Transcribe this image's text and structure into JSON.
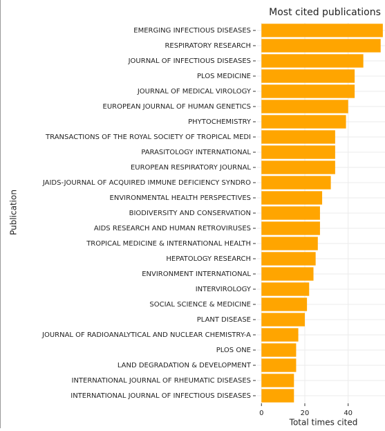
{
  "chart_data": {
    "type": "bar",
    "orientation": "horizontal",
    "title": "Most cited publications",
    "x_label": "Total times cited",
    "y_label": "Publication",
    "categories": [
      "EMERGING INFECTIOUS DISEASES",
      "RESPIRATORY RESEARCH",
      "JOURNAL OF INFECTIOUS DISEASES",
      "PLOS MEDICINE",
      "JOURNAL OF MEDICAL VIROLOGY",
      "EUROPEAN JOURNAL OF HUMAN GENETICS",
      "PHYTOCHEMISTRY",
      "TRANSACTIONS OF THE ROYAL SOCIETY OF TROPICAL MEDI",
      "PARASITOLOGY INTERNATIONAL",
      "EUROPEAN RESPIRATORY JOURNAL",
      "JAIDS-JOURNAL OF ACQUIRED IMMUNE DEFICIENCY SYNDRO",
      "ENVIRONMENTAL HEALTH PERSPECTIVES",
      "BIODIVERSITY AND CONSERVATION",
      "AIDS RESEARCH AND HUMAN RETROVIRUSES",
      "TROPICAL MEDICINE & INTERNATIONAL HEALTH",
      "HEPATOLOGY RESEARCH",
      "ENVIRONMENT INTERNATIONAL",
      "INTERVIROLOGY",
      "SOCIAL SCIENCE & MEDICINE",
      "PLANT DISEASE",
      "JOURNAL OF RADIOANALYTICAL AND NUCLEAR CHEMISTRY-A",
      "PLOS ONE",
      "LAND DEGRADATION & DEVELOPMENT",
      "INTERNATIONAL JOURNAL OF RHEUMATIC DISEASES",
      "INTERNATIONAL JOURNAL OF INFECTIOUS DISEASES"
    ],
    "values": [
      56,
      55,
      47,
      43,
      43,
      40,
      39,
      34,
      34,
      34,
      32,
      28,
      27,
      27,
      26,
      25,
      24,
      22,
      21,
      20,
      17,
      16,
      16,
      15,
      15
    ],
    "color": "#ffa500",
    "xlim": [
      -2,
      57
    ],
    "xticks": [
      0,
      20,
      40
    ],
    "grid": true
  }
}
